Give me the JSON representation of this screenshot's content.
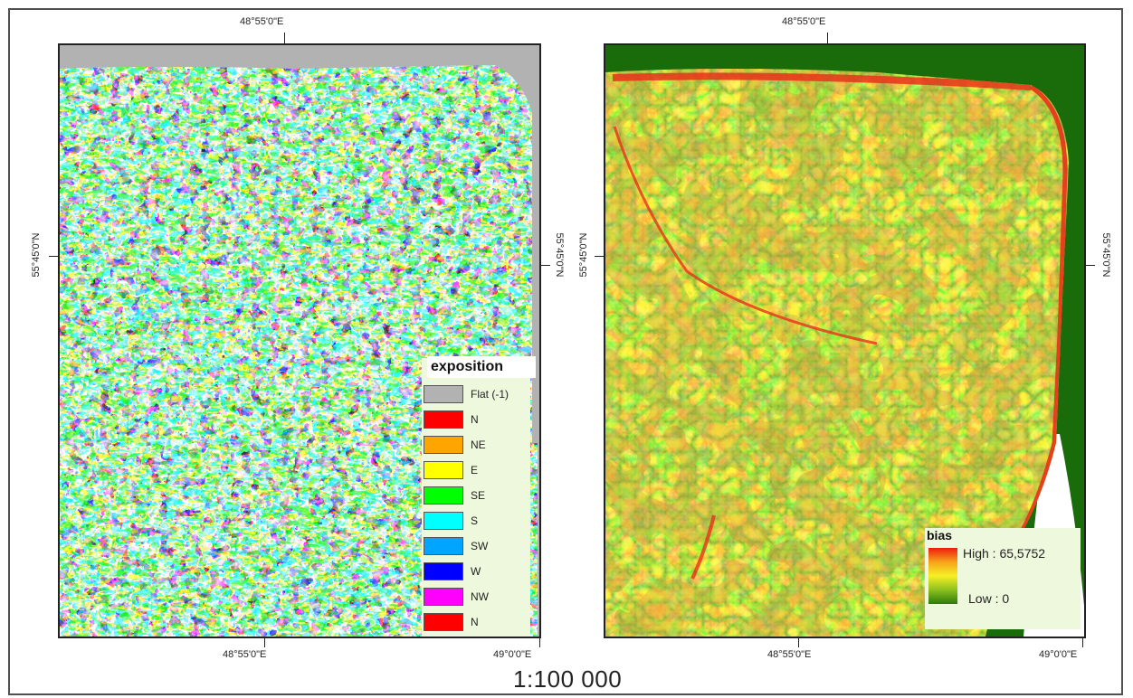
{
  "coordinates": {
    "top_left": "48°55'0\"E",
    "top_right": "48°55'0\"E",
    "bottom_left_1": "48°55'0\"E",
    "bottom_left_2": "49°0'0\"E",
    "bottom_right_1": "48°55'0\"E",
    "bottom_right_2": "49°0'0\"E",
    "left_map_left": "55°45'0\"N",
    "left_map_right": "55°45'0\"N",
    "right_map_left": "55°45'0\"N",
    "right_map_right": "55°45'0\"N"
  },
  "exposition_legend": {
    "title": "exposition",
    "items": [
      {
        "label": "Flat (-1)",
        "color": "#b2b2b2"
      },
      {
        "label": "N",
        "color": "#ff0000"
      },
      {
        "label": "NE",
        "color": "#ffa500"
      },
      {
        "label": "E",
        "color": "#ffff00"
      },
      {
        "label": "SE",
        "color": "#00ff00"
      },
      {
        "label": "S",
        "color": "#00ffff"
      },
      {
        "label": "SW",
        "color": "#00a5ff"
      },
      {
        "label": "W",
        "color": "#0000ff"
      },
      {
        "label": "NW",
        "color": "#ff00ff"
      },
      {
        "label": "N",
        "color": "#ff0000"
      }
    ]
  },
  "bias_legend": {
    "title": "bias",
    "high": "High : 65,5752",
    "low": "Low : 0"
  },
  "scale": "1:100 000"
}
